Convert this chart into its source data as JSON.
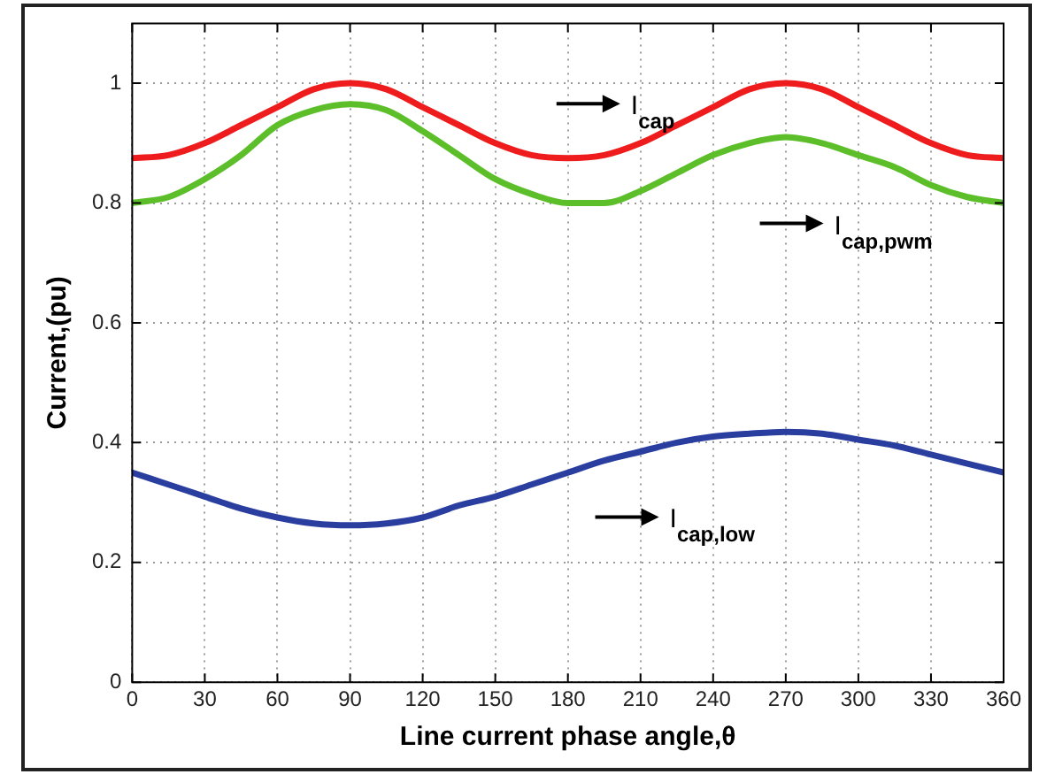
{
  "chart_data": {
    "type": "line",
    "xlabel": "Line current phase angle,θ",
    "ylabel": "Current,(pu)",
    "x": [
      0,
      15,
      30,
      45,
      60,
      75,
      90,
      105,
      120,
      135,
      150,
      165,
      180,
      195,
      210,
      225,
      240,
      255,
      270,
      285,
      300,
      315,
      330,
      345,
      360
    ],
    "series": [
      {
        "name": "I$_{cap}$",
        "color": "#ee1c1c",
        "values": [
          0.875,
          0.88,
          0.9,
          0.93,
          0.96,
          0.99,
          1.0,
          0.99,
          0.96,
          0.93,
          0.9,
          0.88,
          0.875,
          0.88,
          0.9,
          0.93,
          0.96,
          0.99,
          1.0,
          0.99,
          0.96,
          0.93,
          0.9,
          0.88,
          0.875
        ]
      },
      {
        "name": "I$_{cap,pwm}$",
        "color": "#5cbf2a",
        "values": [
          0.8,
          0.81,
          0.84,
          0.88,
          0.93,
          0.955,
          0.965,
          0.955,
          0.92,
          0.88,
          0.84,
          0.815,
          0.8,
          0.8,
          0.82,
          0.85,
          0.88,
          0.9,
          0.91,
          0.9,
          0.88,
          0.86,
          0.83,
          0.81,
          0.8
        ]
      },
      {
        "name": "I$_{cap,low}$",
        "color": "#2a3ea0",
        "values": [
          0.35,
          0.33,
          0.31,
          0.29,
          0.275,
          0.265,
          0.262,
          0.265,
          0.275,
          0.295,
          0.31,
          0.33,
          0.35,
          0.37,
          0.385,
          0.4,
          0.41,
          0.415,
          0.418,
          0.415,
          0.405,
          0.395,
          0.38,
          0.365,
          0.35
        ]
      }
    ],
    "xlim": [
      0,
      360
    ],
    "xticks": [
      0,
      30,
      60,
      90,
      120,
      150,
      180,
      210,
      240,
      270,
      300,
      330,
      360
    ],
    "ylim": [
      0,
      1.1
    ],
    "yticks": [
      0,
      0.2,
      0.4,
      0.6,
      0.8,
      1
    ],
    "grid": true,
    "legend": false,
    "marker": "none",
    "line_style": "solid"
  }
}
